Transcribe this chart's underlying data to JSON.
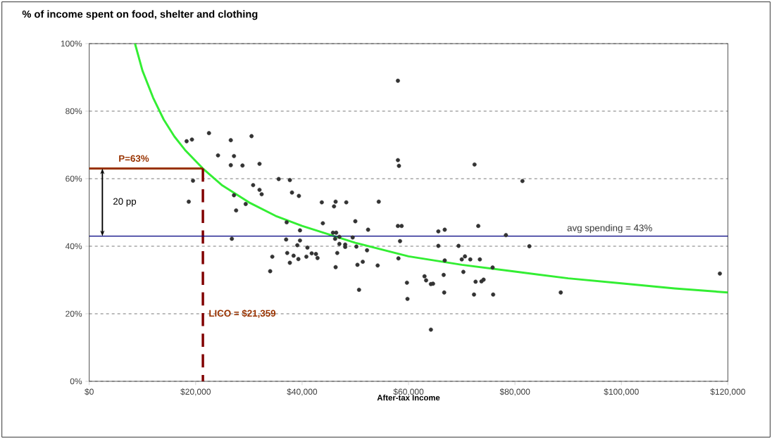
{
  "chart_data": {
    "type": "scatter",
    "title": "% of income spent on food, shelter and clothing",
    "xlabel": "After-tax Income",
    "xlim": [
      0,
      120000
    ],
    "ylim": [
      0,
      100
    ],
    "xticks": [
      {
        "value": 0,
        "label": "$0"
      },
      {
        "value": 20000,
        "label": "$20,000"
      },
      {
        "value": 40000,
        "label": "$40,000"
      },
      {
        "value": 60000,
        "label": "$60,000"
      },
      {
        "value": 80000,
        "label": "$80,000"
      },
      {
        "value": 100000,
        "label": "$100,000"
      },
      {
        "value": 120000,
        "label": "$120,000"
      }
    ],
    "yticks": [
      {
        "value": 0,
        "label": "0%"
      },
      {
        "value": 20,
        "label": "20%"
      },
      {
        "value": 40,
        "label": "40%"
      },
      {
        "value": 60,
        "label": "60%"
      },
      {
        "value": 80,
        "label": "80%"
      },
      {
        "value": 100,
        "label": "100%"
      }
    ],
    "grid": "y",
    "series": [
      {
        "marker": "circle",
        "color": "#333333",
        "x": [
          18300,
          19300,
          22500,
          26600,
          30500,
          24200,
          27200,
          26600,
          28800,
          32000,
          19500,
          18700,
          30800,
          32000,
          32400,
          27200,
          29400,
          27600,
          35600,
          37700,
          38100,
          39400,
          43700,
          46300,
          46000,
          48300,
          54400,
          37100,
          43900,
          50000,
          52400,
          26800,
          39600,
          45800,
          46400,
          46200,
          47000,
          49500,
          58000,
          58700,
          58400,
          37000,
          39600,
          39100,
          41000,
          47000,
          48100,
          48100,
          50200,
          52200,
          37200,
          38400,
          39300,
          37700,
          40800,
          41800,
          42600,
          42900,
          46600,
          34400,
          34000,
          46300,
          50400,
          51400,
          54200,
          58100,
          50700,
          59700,
          59800,
          65600,
          66800,
          73100,
          78300,
          65600,
          69400,
          66800,
          70000,
          70600,
          71600,
          73400,
          75800,
          70300,
          66600,
          63000,
          63300,
          64200,
          64600,
          72600,
          73700,
          74100,
          66700,
          72300,
          75900,
          64200,
          58000,
          58200,
          72400,
          81400,
          58000,
          82700,
          88600,
          118500
        ],
        "values": [
          71.1,
          71.6,
          73.5,
          71.4,
          72.6,
          66.9,
          66.7,
          64.0,
          63.9,
          64.4,
          59.4,
          53.2,
          58.1,
          56.7,
          55.4,
          55.1,
          52.5,
          50.6,
          59.9,
          59.6,
          55.9,
          54.9,
          53.0,
          53.2,
          51.8,
          53.0,
          53.2,
          47.1,
          46.8,
          47.4,
          44.9,
          42.2,
          44.7,
          44.0,
          44.0,
          42.2,
          42.8,
          42.6,
          46.0,
          46.0,
          41.5,
          42.0,
          41.7,
          40.3,
          39.6,
          40.7,
          40.5,
          39.8,
          39.9,
          38.8,
          38.0,
          37.2,
          36.2,
          35.1,
          36.9,
          37.9,
          37.7,
          36.5,
          38.0,
          36.9,
          32.6,
          33.8,
          34.5,
          35.4,
          34.3,
          36.4,
          27.1,
          29.2,
          24.4,
          44.4,
          44.9,
          46.0,
          43.3,
          40.1,
          40.1,
          35.8,
          36.1,
          37.0,
          36.1,
          36.1,
          33.7,
          32.4,
          31.5,
          31.1,
          29.9,
          28.8,
          28.9,
          29.5,
          29.6,
          30.1,
          26.3,
          25.7,
          25.7,
          15.3,
          65.5,
          63.8,
          64.2,
          59.3,
          89.0,
          40.0,
          26.3,
          31.9
        ]
      },
      {
        "type": "line",
        "marker": "none",
        "line_style": "solid",
        "color": "#33ee33",
        "x": [
          8600,
          10000,
          12000,
          14000,
          16000,
          18000,
          21359,
          25000,
          30000,
          35000,
          40000,
          45000,
          50000,
          60000,
          70000,
          80000,
          90000,
          100000,
          110000,
          120000
        ],
        "values": [
          100,
          92,
          84,
          77.5,
          72.5,
          68.5,
          63,
          58,
          53,
          49,
          46,
          43.5,
          41,
          37,
          34.5,
          32.5,
          30.5,
          29,
          27.5,
          26.3
        ]
      },
      {
        "type": "line",
        "marker": "none",
        "line_style": "solid",
        "color": "#993300",
        "x": [
          0,
          21359
        ],
        "values": [
          63,
          63
        ]
      },
      {
        "type": "line",
        "marker": "none",
        "line_style": "dashed",
        "color": "#800000",
        "x": [
          21359,
          21359
        ],
        "values": [
          63,
          0
        ]
      }
    ],
    "ref_lines": [
      {
        "axis": "y",
        "value": 43,
        "label": "avg spending = 43%",
        "color": "#000080"
      }
    ],
    "annotations": [
      "P=63%",
      "LICO = $21,359",
      "20 pp"
    ]
  }
}
